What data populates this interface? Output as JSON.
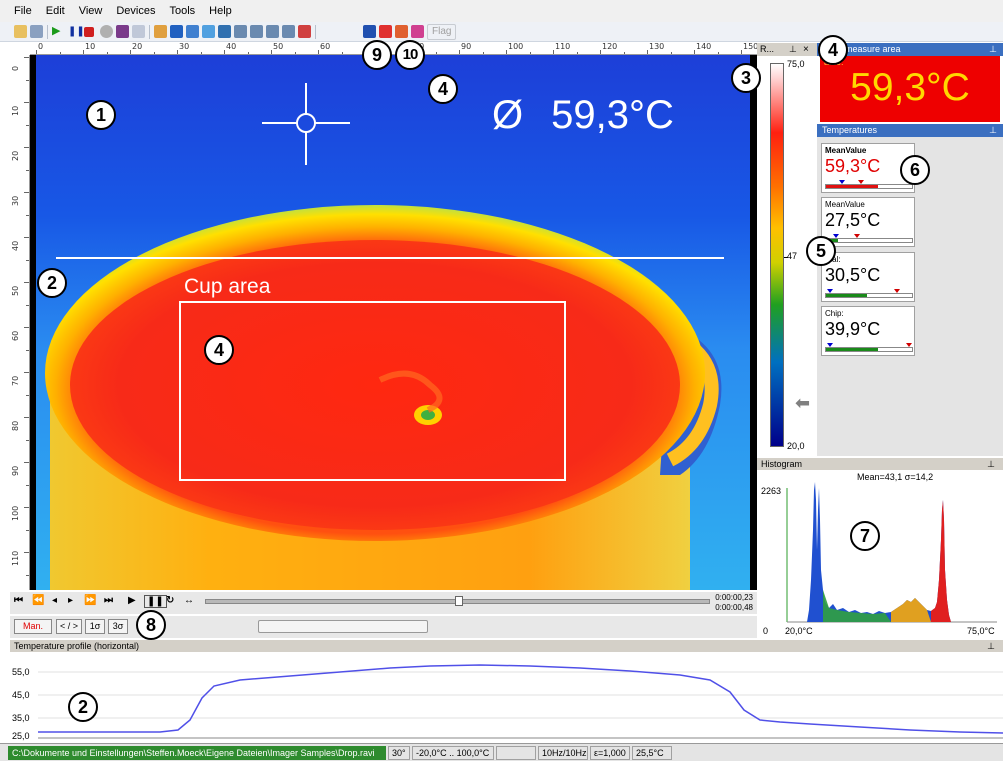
{
  "menu": [
    "File",
    "Edit",
    "View",
    "Devices",
    "Tools",
    "Help"
  ],
  "toolbar": {
    "flag_label": "Flag"
  },
  "ruler_top": [
    "0",
    "10",
    "20",
    "30",
    "40",
    "50",
    "60",
    "70",
    "80",
    "90",
    "100",
    "110",
    "120",
    "130",
    "140",
    "150"
  ],
  "ruler_left": [
    "0",
    "10",
    "20",
    "30",
    "40",
    "50",
    "60",
    "70",
    "80",
    "90",
    "100",
    "110"
  ],
  "image": {
    "mean_symbol": "Ø",
    "mean_value": "59,3°C",
    "cup_area_label": "Cup area"
  },
  "callouts": {
    "c1": "1",
    "c2_image": "2",
    "c3": "3",
    "c4_top": "4",
    "c4_cup": "4",
    "c4_panel": "4",
    "c5": "5",
    "c6": "6",
    "c7": "7",
    "c8": "8",
    "c9": "9",
    "c10": "10",
    "c2_profile": "2"
  },
  "scale": {
    "header": "R...",
    "pin": " ",
    "close": "×",
    "max": "75,0",
    "mid": "47",
    "min": "20,0"
  },
  "measure_area": {
    "header": "measure area",
    "small_label": "alue:",
    "value": "59,3°C"
  },
  "temperatures": {
    "header": "Temperatures",
    "cards": [
      {
        "label": "MeanValue",
        "value": "59,3°C",
        "color": "#e00000",
        "fill_color": "#e01010",
        "fill_fraction": 0.6
      },
      {
        "label": "MeanValue",
        "value": "27,5°C",
        "color": "#000000",
        "fill_color": "#1a8a1a",
        "fill_fraction": 0.14
      },
      {
        "label": "rnal:",
        "value": "30,5°C",
        "color": "#000000",
        "fill_color": "#1a8a1a",
        "fill_fraction": 0.48
      },
      {
        "label": "Chip:",
        "value": "39,9°C",
        "color": "#000000",
        "fill_color": "#1a8a1a",
        "fill_fraction": 0.6
      }
    ]
  },
  "histogram": {
    "header": "Histogram",
    "stats": "Mean=43,1 σ=14,2",
    "y_max": "2263",
    "y_min": "0",
    "x_min": "20,0°C",
    "x_max": "75,0°C"
  },
  "playback": {
    "time_current": "0:00:00,23",
    "time_total": "0:00:00,48"
  },
  "palette_buttons": {
    "man": "Man.",
    "range": "< / >",
    "one_sigma": "1σ",
    "three_sigma": "3σ"
  },
  "profile": {
    "header": "Temperature profile (horizontal)",
    "y_labels": [
      "55,0",
      "45,0",
      "35,0",
      "25,0"
    ]
  },
  "status": {
    "path": "C:\\Dokumente und Einstellungen\\Steffen.Moeck\\Eigene Dateien\\Imager Samples\\Drop.ravi",
    "fov": "30°",
    "range": "-20,0°C .. 100,0°C",
    "blank": "",
    "framerate": "10Hz/10Hz",
    "emissivity": "ε=1,000",
    "ambient": "25,5°C"
  },
  "colors": {
    "accent": "#3b6fc0",
    "alarm": "#ee0000",
    "status_green": "#2e8b2e"
  }
}
